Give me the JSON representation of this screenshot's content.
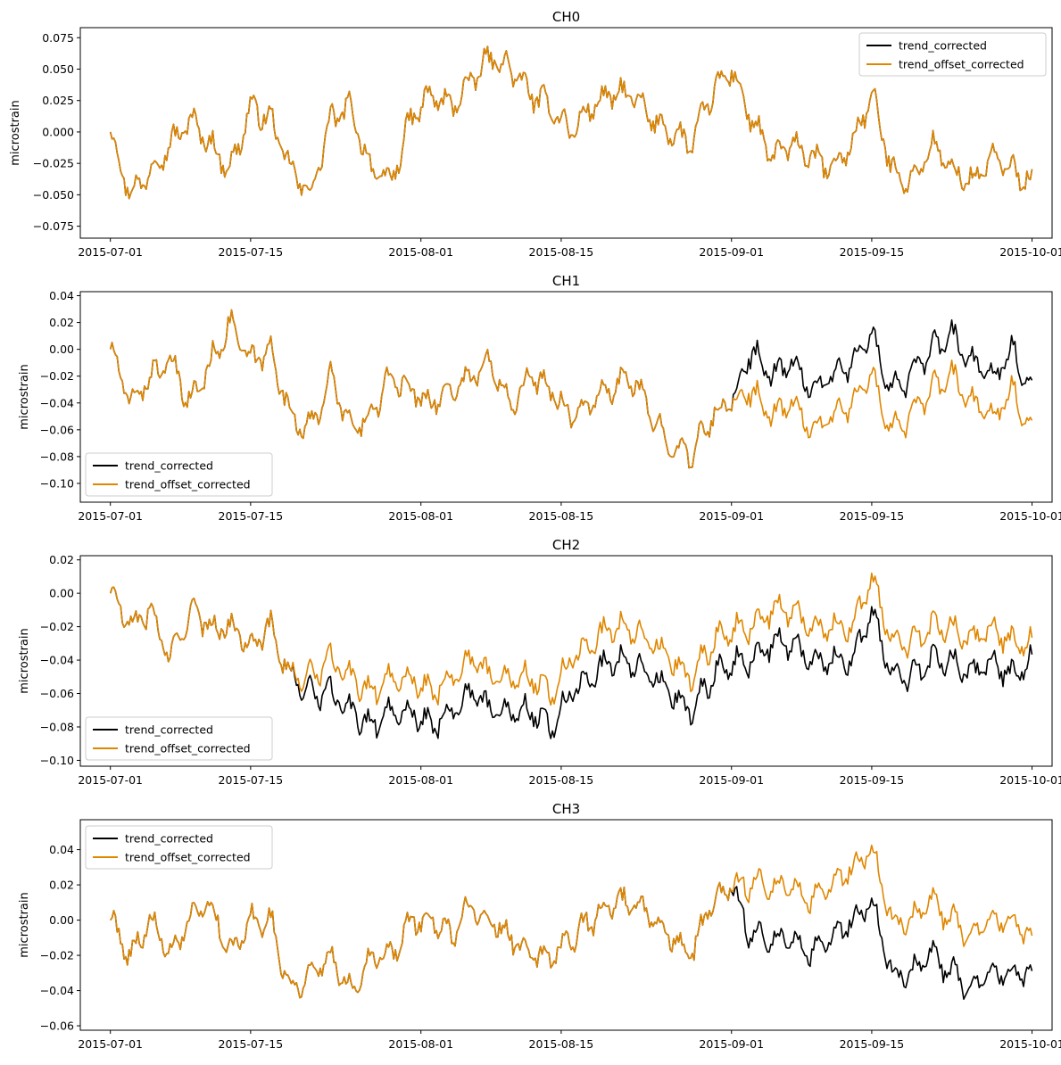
{
  "figure": {
    "colors": {
      "trend_corrected": "#000000",
      "trend_offset_corrected": "#e08700",
      "axes": "#000000",
      "background": "#ffffff"
    }
  },
  "chart_data": [
    {
      "type": "line",
      "title": "CH0",
      "ylabel": "microstrain",
      "xlabel": "",
      "xlim": [
        "2015-06-28",
        "2015-10-03"
      ],
      "ylim": [
        -0.0845,
        0.083
      ],
      "x_ticks": [
        "2015-07-01",
        "2015-07-15",
        "2015-08-01",
        "2015-08-15",
        "2015-09-01",
        "2015-09-15",
        "2015-10-01"
      ],
      "y_ticks": [
        -0.075,
        -0.05,
        -0.025,
        0.0,
        0.025,
        0.05,
        0.075
      ],
      "y_tick_labels": [
        "−0.075",
        "−0.050",
        "−0.025",
        "0.000",
        "0.025",
        "0.050",
        "0.075"
      ],
      "legend": {
        "placement": "upper right",
        "entries": [
          "trend_corrected",
          "trend_offset_corrected"
        ]
      },
      "grid": false,
      "x": [
        "2015-07-01",
        "2015-07-03",
        "2015-07-05",
        "2015-07-07",
        "2015-07-09",
        "2015-07-11",
        "2015-07-13",
        "2015-07-15",
        "2015-07-17",
        "2015-07-19",
        "2015-07-21",
        "2015-07-23",
        "2015-07-25",
        "2015-07-27",
        "2015-07-29",
        "2015-07-31",
        "2015-08-02",
        "2015-08-04",
        "2015-08-06",
        "2015-08-08",
        "2015-08-10",
        "2015-08-12",
        "2015-08-14",
        "2015-08-16",
        "2015-08-18",
        "2015-08-20",
        "2015-08-22",
        "2015-08-24",
        "2015-08-26",
        "2015-08-28",
        "2015-08-30",
        "2015-09-01",
        "2015-09-03",
        "2015-09-05",
        "2015-09-07",
        "2015-09-09",
        "2015-09-11",
        "2015-09-13",
        "2015-09-15",
        "2015-09-17",
        "2015-09-19",
        "2015-09-21",
        "2015-09-23",
        "2015-09-25",
        "2015-09-27",
        "2015-09-29",
        "2015-10-01"
      ],
      "series": [
        {
          "name": "trend_corrected",
          "values": [
            0.0,
            -0.05,
            -0.03,
            -0.01,
            0.01,
            -0.01,
            -0.03,
            0.02,
            0.01,
            -0.03,
            -0.05,
            0.01,
            0.02,
            -0.03,
            -0.04,
            0.01,
            0.03,
            0.02,
            0.04,
            0.06,
            0.05,
            0.03,
            0.02,
            0.0,
            0.02,
            0.03,
            0.03,
            0.01,
            0.0,
            -0.01,
            0.03,
            0.05,
            0.01,
            -0.02,
            -0.01,
            -0.02,
            -0.03,
            -0.01,
            0.03,
            -0.03,
            -0.04,
            -0.01,
            -0.03,
            -0.04,
            -0.02,
            -0.03,
            -0.04
          ]
        },
        {
          "name": "trend_offset_corrected",
          "values": [
            0.0,
            -0.05,
            -0.03,
            -0.01,
            0.01,
            -0.01,
            -0.03,
            0.02,
            0.01,
            -0.03,
            -0.05,
            0.01,
            0.02,
            -0.03,
            -0.04,
            0.01,
            0.03,
            0.02,
            0.04,
            0.06,
            0.05,
            0.03,
            0.02,
            0.0,
            0.02,
            0.03,
            0.03,
            0.01,
            0.0,
            -0.01,
            0.03,
            0.05,
            0.01,
            -0.02,
            -0.01,
            -0.02,
            -0.03,
            -0.01,
            0.03,
            -0.03,
            -0.04,
            -0.01,
            -0.03,
            -0.04,
            -0.02,
            -0.03,
            -0.04
          ]
        }
      ]
    },
    {
      "type": "line",
      "title": "CH1",
      "ylabel": "microstrain",
      "xlabel": "",
      "xlim": [
        "2015-06-28",
        "2015-10-03"
      ],
      "ylim": [
        -0.114,
        0.043
      ],
      "x_ticks": [
        "2015-07-01",
        "2015-07-15",
        "2015-08-01",
        "2015-08-15",
        "2015-09-01",
        "2015-09-15",
        "2015-10-01"
      ],
      "y_ticks": [
        -0.1,
        -0.08,
        -0.06,
        -0.04,
        -0.02,
        0.0,
        0.02,
        0.04
      ],
      "y_tick_labels": [
        "−0.10",
        "−0.08",
        "−0.06",
        "−0.04",
        "−0.02",
        "0.00",
        "0.02",
        "0.04"
      ],
      "legend": {
        "placement": "lower left",
        "entries": [
          "trend_corrected",
          "trend_offset_corrected"
        ]
      },
      "grid": false,
      "x": [
        "2015-07-01",
        "2015-07-03",
        "2015-07-05",
        "2015-07-07",
        "2015-07-09",
        "2015-07-11",
        "2015-07-13",
        "2015-07-15",
        "2015-07-17",
        "2015-07-19",
        "2015-07-21",
        "2015-07-23",
        "2015-07-25",
        "2015-07-27",
        "2015-07-29",
        "2015-07-31",
        "2015-08-02",
        "2015-08-04",
        "2015-08-06",
        "2015-08-08",
        "2015-08-10",
        "2015-08-12",
        "2015-08-14",
        "2015-08-16",
        "2015-08-18",
        "2015-08-20",
        "2015-08-22",
        "2015-08-24",
        "2015-08-26",
        "2015-08-28",
        "2015-08-30",
        "2015-09-01",
        "2015-09-03",
        "2015-09-05",
        "2015-09-07",
        "2015-09-09",
        "2015-09-11",
        "2015-09-13",
        "2015-09-15",
        "2015-09-17",
        "2015-09-19",
        "2015-09-21",
        "2015-09-23",
        "2015-09-25",
        "2015-09-27",
        "2015-09-29",
        "2015-10-01"
      ],
      "series": [
        {
          "name": "trend_corrected",
          "values": [
            0.0,
            -0.04,
            -0.02,
            -0.01,
            -0.04,
            -0.01,
            0.02,
            -0.01,
            0.0,
            -0.05,
            -0.06,
            -0.02,
            -0.06,
            -0.05,
            -0.02,
            -0.03,
            -0.04,
            -0.03,
            -0.02,
            -0.01,
            -0.04,
            -0.02,
            -0.03,
            -0.05,
            -0.04,
            -0.03,
            -0.02,
            -0.05,
            -0.07,
            -0.08,
            -0.05,
            -0.04,
            0.0,
            -0.02,
            -0.01,
            -0.03,
            -0.02,
            -0.01,
            0.01,
            -0.03,
            -0.02,
            0.0,
            0.01,
            -0.01,
            -0.02,
            0.0,
            -0.03
          ]
        },
        {
          "name": "trend_offset_corrected",
          "values": [
            0.0,
            -0.04,
            -0.02,
            -0.01,
            -0.04,
            -0.01,
            0.02,
            -0.01,
            0.0,
            -0.05,
            -0.06,
            -0.02,
            -0.06,
            -0.05,
            -0.02,
            -0.03,
            -0.04,
            -0.03,
            -0.02,
            -0.01,
            -0.04,
            -0.02,
            -0.03,
            -0.05,
            -0.04,
            -0.03,
            -0.02,
            -0.05,
            -0.07,
            -0.08,
            -0.05,
            -0.04,
            -0.03,
            -0.05,
            -0.04,
            -0.06,
            -0.05,
            -0.04,
            -0.02,
            -0.06,
            -0.05,
            -0.03,
            -0.02,
            -0.04,
            -0.05,
            -0.03,
            -0.06
          ]
        }
      ]
    },
    {
      "type": "line",
      "title": "CH2",
      "ylabel": "microstrain",
      "xlabel": "",
      "xlim": [
        "2015-06-28",
        "2015-10-03"
      ],
      "ylim": [
        -0.1035,
        0.0225
      ],
      "x_ticks": [
        "2015-07-01",
        "2015-07-15",
        "2015-08-01",
        "2015-08-15",
        "2015-09-01",
        "2015-09-15",
        "2015-10-01"
      ],
      "y_ticks": [
        -0.1,
        -0.08,
        -0.06,
        -0.04,
        -0.02,
        0.0,
        0.02
      ],
      "y_tick_labels": [
        "−0.10",
        "−0.08",
        "−0.06",
        "−0.04",
        "−0.02",
        "0.00",
        "0.02"
      ],
      "legend": {
        "placement": "lower left",
        "entries": [
          "trend_corrected",
          "trend_offset_corrected"
        ]
      },
      "grid": false,
      "x": [
        "2015-07-01",
        "2015-07-03",
        "2015-07-05",
        "2015-07-07",
        "2015-07-09",
        "2015-07-11",
        "2015-07-13",
        "2015-07-15",
        "2015-07-17",
        "2015-07-19",
        "2015-07-21",
        "2015-07-23",
        "2015-07-25",
        "2015-07-27",
        "2015-07-29",
        "2015-07-31",
        "2015-08-02",
        "2015-08-04",
        "2015-08-06",
        "2015-08-08",
        "2015-08-10",
        "2015-08-12",
        "2015-08-14",
        "2015-08-16",
        "2015-08-18",
        "2015-08-20",
        "2015-08-22",
        "2015-08-24",
        "2015-08-26",
        "2015-08-28",
        "2015-08-30",
        "2015-09-01",
        "2015-09-03",
        "2015-09-05",
        "2015-09-07",
        "2015-09-09",
        "2015-09-11",
        "2015-09-13",
        "2015-09-15",
        "2015-09-17",
        "2015-09-19",
        "2015-09-21",
        "2015-09-23",
        "2015-09-25",
        "2015-09-27",
        "2015-09-29",
        "2015-10-01"
      ],
      "series": [
        {
          "name": "trend_corrected",
          "values": [
            0.0,
            -0.02,
            -0.01,
            -0.04,
            -0.01,
            -0.02,
            -0.02,
            -0.03,
            -0.02,
            -0.05,
            -0.06,
            -0.06,
            -0.07,
            -0.08,
            -0.07,
            -0.07,
            -0.08,
            -0.07,
            -0.06,
            -0.07,
            -0.07,
            -0.07,
            -0.08,
            -0.06,
            -0.05,
            -0.04,
            -0.04,
            -0.05,
            -0.06,
            -0.07,
            -0.05,
            -0.04,
            -0.04,
            -0.03,
            -0.03,
            -0.04,
            -0.04,
            -0.04,
            -0.01,
            -0.05,
            -0.05,
            -0.04,
            -0.04,
            -0.05,
            -0.04,
            -0.05,
            -0.04
          ]
        },
        {
          "name": "trend_offset_corrected",
          "values": [
            0.0,
            -0.02,
            -0.01,
            -0.04,
            -0.01,
            -0.02,
            -0.02,
            -0.03,
            -0.02,
            -0.05,
            -0.05,
            -0.04,
            -0.05,
            -0.06,
            -0.05,
            -0.05,
            -0.06,
            -0.05,
            -0.04,
            -0.05,
            -0.05,
            -0.05,
            -0.06,
            -0.04,
            -0.03,
            -0.02,
            -0.02,
            -0.03,
            -0.04,
            -0.05,
            -0.03,
            -0.02,
            -0.02,
            -0.01,
            -0.01,
            -0.02,
            -0.02,
            -0.02,
            0.01,
            -0.03,
            -0.03,
            -0.02,
            -0.02,
            -0.03,
            -0.02,
            -0.03,
            -0.03
          ]
        }
      ]
    },
    {
      "type": "line",
      "title": "CH3",
      "ylabel": "microstrain",
      "xlabel": "",
      "xlim": [
        "2015-06-28",
        "2015-10-03"
      ],
      "ylim": [
        -0.0625,
        0.057
      ],
      "x_ticks": [
        "2015-07-01",
        "2015-07-15",
        "2015-08-01",
        "2015-08-15",
        "2015-09-01",
        "2015-09-15",
        "2015-10-01"
      ],
      "y_ticks": [
        -0.06,
        -0.04,
        -0.02,
        0.0,
        0.02,
        0.04
      ],
      "y_tick_labels": [
        "−0.06",
        "−0.04",
        "−0.02",
        "0.00",
        "0.02",
        "0.04"
      ],
      "legend": {
        "placement": "upper left",
        "entries": [
          "trend_corrected",
          "trend_offset_corrected"
        ]
      },
      "grid": false,
      "x": [
        "2015-07-01",
        "2015-07-03",
        "2015-07-05",
        "2015-07-07",
        "2015-07-09",
        "2015-07-11",
        "2015-07-13",
        "2015-07-15",
        "2015-07-17",
        "2015-07-19",
        "2015-07-21",
        "2015-07-23",
        "2015-07-25",
        "2015-07-27",
        "2015-07-29",
        "2015-07-31",
        "2015-08-02",
        "2015-08-04",
        "2015-08-06",
        "2015-08-08",
        "2015-08-10",
        "2015-08-12",
        "2015-08-14",
        "2015-08-16",
        "2015-08-18",
        "2015-08-20",
        "2015-08-22",
        "2015-08-24",
        "2015-08-26",
        "2015-08-28",
        "2015-08-30",
        "2015-09-01",
        "2015-09-03",
        "2015-09-05",
        "2015-09-07",
        "2015-09-09",
        "2015-09-11",
        "2015-09-13",
        "2015-09-15",
        "2015-09-17",
        "2015-09-19",
        "2015-09-21",
        "2015-09-23",
        "2015-09-25",
        "2015-09-27",
        "2015-09-29",
        "2015-10-01"
      ],
      "series": [
        {
          "name": "trend_corrected",
          "values": [
            0.0,
            -0.02,
            0.0,
            -0.02,
            0.0,
            0.01,
            -0.02,
            0.0,
            0.0,
            -0.04,
            -0.03,
            -0.02,
            -0.04,
            -0.02,
            -0.02,
            0.0,
            0.0,
            -0.01,
            0.01,
            0.0,
            -0.01,
            -0.02,
            -0.02,
            -0.01,
            0.0,
            0.01,
            0.01,
            0.0,
            -0.01,
            -0.02,
            0.01,
            0.02,
            -0.01,
            -0.01,
            -0.01,
            -0.02,
            -0.01,
            0.0,
            0.01,
            -0.03,
            -0.03,
            -0.02,
            -0.03,
            -0.04,
            -0.03,
            -0.03,
            -0.03
          ]
        },
        {
          "name": "trend_offset_corrected",
          "values": [
            0.0,
            -0.02,
            0.0,
            -0.02,
            0.0,
            0.01,
            -0.02,
            0.0,
            0.0,
            -0.04,
            -0.03,
            -0.02,
            -0.04,
            -0.02,
            -0.02,
            0.0,
            0.0,
            -0.01,
            0.01,
            0.0,
            -0.01,
            -0.02,
            -0.02,
            -0.01,
            0.0,
            0.01,
            0.01,
            0.0,
            -0.01,
            -0.02,
            0.01,
            0.02,
            0.02,
            0.02,
            0.02,
            0.01,
            0.02,
            0.03,
            0.04,
            0.0,
            0.0,
            0.01,
            0.0,
            -0.01,
            0.0,
            0.0,
            -0.01
          ]
        }
      ]
    }
  ]
}
